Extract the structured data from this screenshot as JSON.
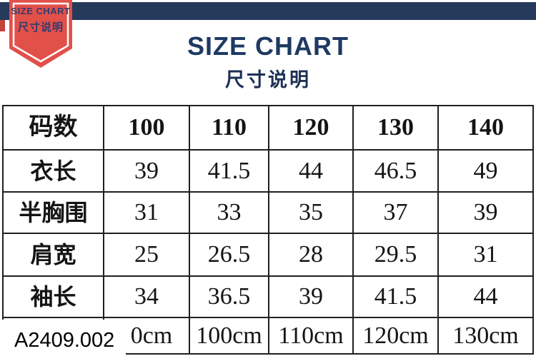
{
  "top_bar": {
    "color": "#263a5c"
  },
  "ribbon": {
    "line1": "SIZE CHART",
    "line2": "尺寸说明",
    "bg_color": "#e2504a",
    "border_color": "#ffffff",
    "text_color": "#333c6e"
  },
  "header": {
    "title": "SIZE CHART",
    "subtitle": "尺寸说明",
    "title_color": "#1e3a63"
  },
  "product_code": {
    "text": "A2409.002"
  },
  "chart_data": {
    "type": "table",
    "title": "SIZE CHART 尺寸说明",
    "columns": [
      "码数",
      "100",
      "110",
      "120",
      "130",
      "140"
    ],
    "rows": [
      [
        "衣长",
        "39",
        "41.5",
        "44",
        "46.5",
        "49"
      ],
      [
        "半胸围",
        "31",
        "33",
        "35",
        "37",
        "39"
      ],
      [
        "肩宽",
        "25",
        "26.5",
        "28",
        "29.5",
        "31"
      ],
      [
        "袖长",
        "34",
        "36.5",
        "39",
        "41.5",
        "44"
      ],
      [
        "",
        "0cm",
        "100cm",
        "110cm",
        "120cm",
        "130cm"
      ]
    ],
    "notes": "last row first cell is covered by white product-code overlay"
  }
}
